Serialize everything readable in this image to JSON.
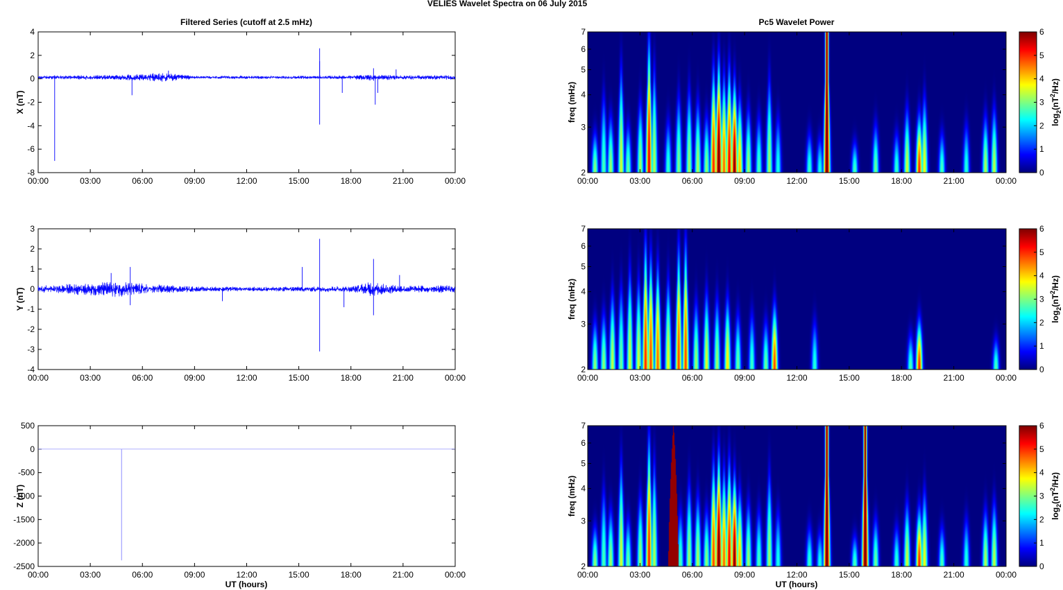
{
  "figure": {
    "title": "VELIES Wavelet Spectra on 06 July      2015",
    "left_title": "Filtered Series (cutoff at 2.5 mHz)",
    "right_title": "Pc5 Wavelet Power",
    "x_axis_label": "UT (hours)"
  },
  "chart_data": [
    {
      "type": "line",
      "component": "X",
      "ylabel": "X (nT)",
      "xlabel": "",
      "xlim": [
        0,
        24
      ],
      "ylim": [
        -8,
        4
      ],
      "x_ticks": [
        "00:00",
        "03:00",
        "06:00",
        "09:00",
        "12:00",
        "15:00",
        "18:00",
        "21:00",
        "00:00"
      ],
      "y_ticks": [
        "4",
        "2",
        "0",
        "-2",
        "-4",
        "-6",
        "-8"
      ],
      "y_tick_values": [
        4,
        2,
        0,
        -2,
        -4,
        -6,
        -8
      ],
      "series": [
        {
          "values": [],
          "color": "#0000ff"
        }
      ],
      "noise": {
        "baseline": 0.12,
        "amplitude": [
          [
            0,
            0.1
          ],
          [
            2.5,
            0.14
          ],
          [
            5.0,
            0.18
          ],
          [
            7.2,
            0.3
          ],
          [
            9.0,
            0.1
          ],
          [
            12.0,
            0.09
          ],
          [
            16.0,
            0.1
          ],
          [
            18.0,
            0.12
          ],
          [
            19.2,
            0.22
          ],
          [
            20.5,
            0.14
          ],
          [
            24,
            0.14
          ]
        ]
      },
      "spikes": [
        [
          0.95,
          -7.0
        ],
        [
          0.95,
          0.3
        ],
        [
          5.4,
          -1.4
        ],
        [
          7.5,
          0.7
        ],
        [
          16.2,
          2.6
        ],
        [
          16.2,
          -3.9
        ],
        [
          16.2,
          1.5
        ],
        [
          17.5,
          -1.2
        ],
        [
          19.3,
          0.9
        ],
        [
          19.4,
          -2.2
        ],
        [
          19.55,
          -1.2
        ],
        [
          20.6,
          0.8
        ]
      ]
    },
    {
      "type": "line",
      "component": "Y",
      "ylabel": "Y (nT)",
      "xlabel": "",
      "xlim": [
        0,
        24
      ],
      "ylim": [
        -4,
        3
      ],
      "x_ticks": [
        "00:00",
        "03:00",
        "06:00",
        "09:00",
        "12:00",
        "15:00",
        "18:00",
        "21:00",
        "00:00"
      ],
      "y_ticks": [
        "3",
        "2",
        "1",
        "0",
        "-1",
        "-2",
        "-3",
        "-4"
      ],
      "y_tick_values": [
        3,
        2,
        1,
        0,
        -1,
        -2,
        -3,
        -4
      ],
      "series": [
        {
          "values": [],
          "color": "#0000ff"
        }
      ],
      "noise": {
        "baseline": 0.0,
        "amplitude": [
          [
            0,
            0.12
          ],
          [
            2.5,
            0.22
          ],
          [
            4.5,
            0.3
          ],
          [
            6.5,
            0.18
          ],
          [
            9.0,
            0.1
          ],
          [
            12.0,
            0.08
          ],
          [
            16.0,
            0.1
          ],
          [
            18.0,
            0.12
          ],
          [
            19.3,
            0.28
          ],
          [
            20.5,
            0.14
          ],
          [
            24,
            0.14
          ]
        ]
      },
      "spikes": [
        [
          4.2,
          0.8
        ],
        [
          5.3,
          1.1
        ],
        [
          5.3,
          -0.8
        ],
        [
          10.6,
          -0.6
        ],
        [
          15.2,
          1.1
        ],
        [
          16.2,
          2.5
        ],
        [
          16.2,
          -3.1
        ],
        [
          17.6,
          -0.9
        ],
        [
          19.3,
          1.5
        ],
        [
          19.3,
          -1.3
        ],
        [
          20.8,
          0.7
        ]
      ]
    },
    {
      "type": "line",
      "component": "Z",
      "ylabel": "Z (nT)",
      "xlabel": "UT (hours)",
      "xlim": [
        0,
        24
      ],
      "ylim": [
        -2500,
        500
      ],
      "x_ticks": [
        "00:00",
        "03:00",
        "06:00",
        "09:00",
        "12:00",
        "15:00",
        "18:00",
        "21:00",
        "00:00"
      ],
      "y_ticks": [
        "500",
        "0",
        "-500",
        "-1000",
        "-1500",
        "-2000",
        "-2500"
      ],
      "y_tick_values": [
        500,
        0,
        -500,
        -1000,
        -1500,
        -2000,
        -2500
      ],
      "series": [
        {
          "values": [],
          "color": "#8080ff"
        }
      ],
      "noise": {
        "baseline": 0,
        "amplitude": [
          [
            0,
            0
          ],
          [
            24,
            0
          ]
        ]
      },
      "spikes": [
        [
          4.8,
          -2370
        ]
      ]
    },
    {
      "type": "heatmap",
      "component": "X",
      "ylabel": "freq (mHz)",
      "xlabel": "",
      "xlim": [
        0,
        24
      ],
      "ylim": [
        2,
        7
      ],
      "y_scale": "log",
      "x_ticks": [
        "00:00",
        "03:00",
        "06:00",
        "09:00",
        "12:00",
        "15:00",
        "18:00",
        "21:00",
        "00:00"
      ],
      "y_ticks": [
        "7",
        "6",
        "5",
        "4",
        "3",
        "2"
      ],
      "y_tick_values": [
        7,
        6,
        5,
        4,
        3,
        2
      ],
      "colorbar_ticks": [
        "6",
        "5",
        "4",
        "3",
        "2",
        "1",
        "0"
      ],
      "colorbar_label": "log2(nT2/Hz)",
      "colorbar_range": [
        0,
        6
      ],
      "blobs": [
        [
          0.4,
          2.6,
          3.2
        ],
        [
          0.9,
          3.6,
          2.8
        ],
        [
          1.3,
          3.0,
          3.3
        ],
        [
          1.9,
          4.6,
          3.6
        ],
        [
          2.3,
          2.8,
          3.0
        ],
        [
          3.0,
          3.4,
          3.3
        ],
        [
          3.5,
          5.8,
          5.5
        ],
        [
          3.8,
          4.6,
          3.4
        ],
        [
          4.6,
          2.9,
          2.7
        ],
        [
          5.2,
          3.6,
          3.1
        ],
        [
          5.8,
          3.8,
          3.3
        ],
        [
          6.3,
          3.4,
          3.4
        ],
        [
          6.8,
          3.0,
          3.2
        ],
        [
          7.2,
          4.5,
          5.2
        ],
        [
          7.5,
          4.8,
          6.5
        ],
        [
          7.8,
          4.2,
          4.8
        ],
        [
          8.1,
          4.5,
          5.5
        ],
        [
          8.4,
          4.0,
          6.2
        ],
        [
          8.7,
          3.5,
          4.3
        ],
        [
          9.2,
          3.2,
          3.3
        ],
        [
          9.8,
          3.0,
          2.8
        ],
        [
          10.4,
          4.2,
          3.3
        ],
        [
          10.9,
          3.0,
          2.5
        ],
        [
          12.7,
          2.6,
          2.7
        ],
        [
          13.3,
          2.5,
          2.5
        ],
        [
          13.7,
          1.2,
          6.5
        ],
        [
          15.3,
          2.4,
          2.8
        ],
        [
          16.5,
          2.8,
          3.0
        ],
        [
          17.7,
          2.6,
          2.7
        ],
        [
          18.3,
          3.2,
          3.6
        ],
        [
          19.0,
          3.0,
          5.2
        ],
        [
          19.3,
          3.5,
          3.8
        ],
        [
          20.3,
          2.6,
          2.8
        ],
        [
          21.7,
          2.8,
          2.6
        ],
        [
          22.8,
          3.0,
          3.4
        ],
        [
          23.3,
          3.2,
          3.5
        ]
      ]
    },
    {
      "type": "heatmap",
      "component": "Y",
      "ylabel": "freq (mHz)",
      "xlabel": "",
      "xlim": [
        0,
        24
      ],
      "ylim": [
        2,
        7
      ],
      "y_scale": "log",
      "x_ticks": [
        "00:00",
        "03:00",
        "06:00",
        "09:00",
        "12:00",
        "15:00",
        "18:00",
        "21:00",
        "00:00"
      ],
      "y_ticks": [
        "7",
        "6",
        "5",
        "4",
        "3",
        "2"
      ],
      "y_tick_values": [
        7,
        6,
        5,
        4,
        3,
        2
      ],
      "colorbar_ticks": [
        "6",
        "5",
        "4",
        "3",
        "2",
        "1",
        "0"
      ],
      "colorbar_label": "log2(nT2/Hz)",
      "colorbar_range": [
        0,
        6
      ],
      "blobs": [
        [
          0.4,
          2.8,
          3.2
        ],
        [
          0.9,
          3.0,
          3.2
        ],
        [
          1.4,
          3.6,
          3.5
        ],
        [
          1.9,
          3.8,
          3.0
        ],
        [
          2.4,
          4.4,
          3.6
        ],
        [
          2.9,
          4.0,
          3.6
        ],
        [
          3.3,
          5.5,
          5.2
        ],
        [
          3.6,
          4.9,
          5.0
        ],
        [
          4.0,
          4.5,
          4.8
        ],
        [
          4.6,
          4.0,
          3.8
        ],
        [
          5.2,
          5.3,
          5.0
        ],
        [
          5.6,
          5.5,
          5.0
        ],
        [
          6.2,
          3.3,
          3.3
        ],
        [
          6.8,
          3.6,
          3.7
        ],
        [
          7.4,
          3.4,
          3.3
        ],
        [
          8.0,
          3.4,
          4.0
        ],
        [
          8.6,
          3.0,
          3.0
        ],
        [
          9.4,
          3.0,
          2.7
        ],
        [
          10.2,
          2.8,
          3.0
        ],
        [
          10.7,
          3.2,
          5.0
        ],
        [
          13.0,
          2.8,
          2.6
        ],
        [
          18.5,
          2.5,
          2.8
        ],
        [
          19.0,
          2.8,
          5.2
        ],
        [
          23.4,
          2.4,
          2.8
        ]
      ]
    },
    {
      "type": "heatmap",
      "component": "Z",
      "ylabel": "freq (mHz)",
      "xlabel": "UT (hours)",
      "xlim": [
        0,
        24
      ],
      "ylim": [
        2,
        7
      ],
      "y_scale": "log",
      "x_ticks": [
        "00:00",
        "03:00",
        "06:00",
        "09:00",
        "12:00",
        "15:00",
        "18:00",
        "21:00",
        "00:00"
      ],
      "y_ticks": [
        "7",
        "6",
        "5",
        "4",
        "3",
        "2"
      ],
      "y_tick_values": [
        7,
        6,
        5,
        4,
        3,
        2
      ],
      "colorbar_ticks": [
        "6",
        "5",
        "4",
        "3",
        "2",
        "1",
        "0"
      ],
      "colorbar_label": "log2(nT2/Hz)",
      "colorbar_range": [
        0,
        6
      ],
      "blobs": [
        [
          0.4,
          2.6,
          3.2
        ],
        [
          0.9,
          3.6,
          2.8
        ],
        [
          1.3,
          3.0,
          3.3
        ],
        [
          1.9,
          4.6,
          3.6
        ],
        [
          2.3,
          2.8,
          3.0
        ],
        [
          3.0,
          3.4,
          3.3
        ],
        [
          3.5,
          5.6,
          5.2
        ],
        [
          3.8,
          4.6,
          3.4
        ],
        [
          5.3,
          3.0,
          2.8
        ],
        [
          5.8,
          3.8,
          3.3
        ],
        [
          6.3,
          3.4,
          3.4
        ],
        [
          6.8,
          3.0,
          3.2
        ],
        [
          7.2,
          4.5,
          5.0
        ],
        [
          7.5,
          4.8,
          6.5
        ],
        [
          7.8,
          4.2,
          4.8
        ],
        [
          8.1,
          4.5,
          5.5
        ],
        [
          8.4,
          4.0,
          6.2
        ],
        [
          8.7,
          3.5,
          4.3
        ],
        [
          9.2,
          3.2,
          3.3
        ],
        [
          9.8,
          3.0,
          2.8
        ],
        [
          10.4,
          4.2,
          3.3
        ],
        [
          10.9,
          3.0,
          2.5
        ],
        [
          12.7,
          2.6,
          2.7
        ],
        [
          13.3,
          2.5,
          2.5
        ],
        [
          13.7,
          1.2,
          6.5
        ],
        [
          15.3,
          2.4,
          2.8
        ],
        [
          15.9,
          1.2,
          6.5
        ],
        [
          16.5,
          2.8,
          3.0
        ],
        [
          17.7,
          2.6,
          2.7
        ],
        [
          18.3,
          3.2,
          3.6
        ],
        [
          19.0,
          3.0,
          5.2
        ],
        [
          19.3,
          3.5,
          3.8
        ],
        [
          20.3,
          2.6,
          2.8
        ],
        [
          21.7,
          2.8,
          2.6
        ],
        [
          22.8,
          3.0,
          3.4
        ],
        [
          23.3,
          3.2,
          3.5
        ]
      ],
      "saturated_band": {
        "x_start": 4.6,
        "x_end": 5.2,
        "value": 6
      }
    }
  ]
}
